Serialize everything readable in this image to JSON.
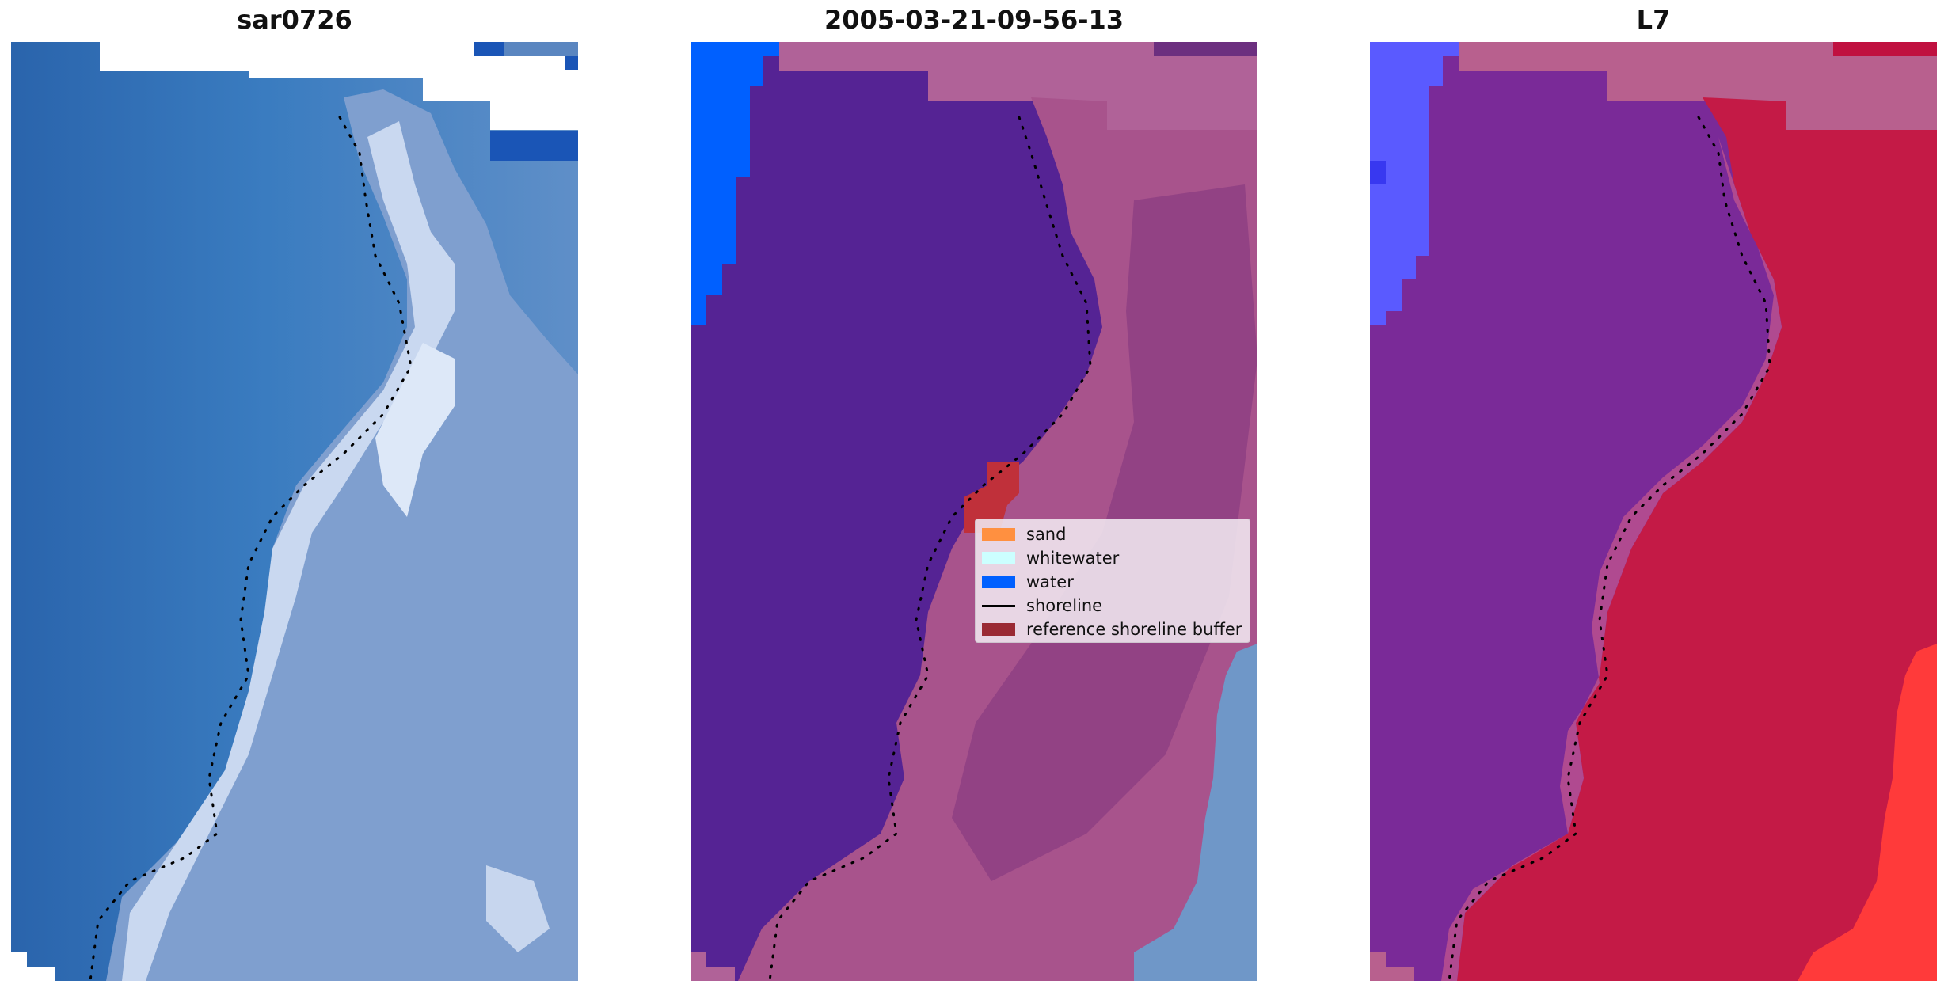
{
  "panels": [
    {
      "title": "sar0726"
    },
    {
      "title": "2005-03-21-09-56-13"
    },
    {
      "title": "L7"
    }
  ],
  "legend": {
    "items": [
      {
        "label": "sand",
        "color": "#ff9040",
        "kind": "patch"
      },
      {
        "label": "whitewater",
        "color": "#ccffff",
        "kind": "patch"
      },
      {
        "label": "water",
        "color": "#0060ff",
        "kind": "patch"
      },
      {
        "label": "shoreline",
        "color": "#000000",
        "kind": "line"
      },
      {
        "label": "reference shoreline buffer",
        "color": "#9a2a34",
        "kind": "patch"
      }
    ]
  },
  "colors": {
    "rgb_water": "#2e6db2",
    "rgb_whitewater": "#d8e6f6",
    "classified_land": "#552394",
    "classified_water": "#0060ff",
    "classified_pink": "#b06298",
    "classified_buffer": "#c0303a",
    "l7_purple": "#7a2a98",
    "l7_red": "#c41a46",
    "l7_blue": "#5a5aff"
  }
}
